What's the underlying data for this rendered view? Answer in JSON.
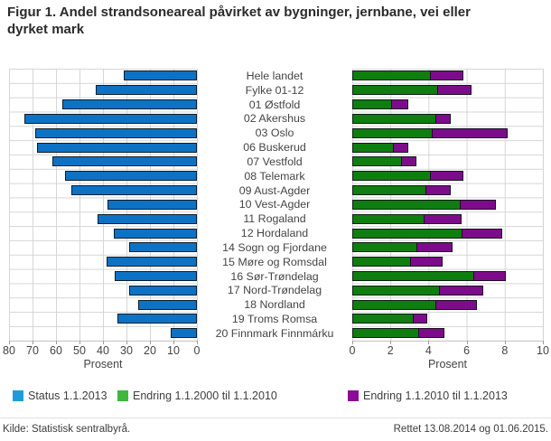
{
  "title": "Figur 1. Andel strandsoneareal påvirket av bygninger, jernbane, vei eller dyrket mark",
  "footer": {
    "source": "Kilde: Statistisk sentralbyrå.",
    "note": "Rettet 13.08.2014 og 01.06.2015."
  },
  "legend": [
    {
      "label": "Status 1.1.2013",
      "color": "#1f9cd8"
    },
    {
      "label": "Endring 1.1.2000 til 1.1.2010",
      "color": "#3db83d"
    },
    {
      "label": "Endring 1.1.2010 til 1.1.2013",
      "color": "#8a0d96"
    }
  ],
  "colors": {
    "status_bar": "#0d72c4",
    "endring_2000_2010_bar": "#0f7d0f",
    "endring_2010_2013_bar": "#7d0c8a",
    "grid": "#d6d6d6"
  },
  "chart_data": {
    "type": "bar",
    "orientation": "horizontal",
    "title": "Figur 1. Andel strandsoneareal påvirket av bygninger, jernbane, vei eller dyrket mark",
    "grid": true,
    "legend_position": "bottom",
    "categories": [
      "Hele landet",
      "Fylke 01-12",
      "01 Østfold",
      "02 Akershus",
      "03 Oslo",
      "06 Buskerud",
      "07 Vestfold",
      "08 Telemark",
      "09 Aust-Agder",
      "10 Vest-Agder",
      "11 Rogaland",
      "12 Hordaland",
      "14 Sogn og Fjordane",
      "15 Møre og Romsdal",
      "16 Sør-Trøndelag",
      "17 Nord-Trøndelag",
      "18 Nordland",
      "19 Troms Romsa",
      "20 Finnmark Finnmárku"
    ],
    "panels": [
      {
        "name": "status",
        "xlabel": "Prosent",
        "xlim": [
          80,
          0
        ],
        "ticks": [
          80,
          70,
          60,
          50,
          40,
          30,
          20,
          10,
          0
        ],
        "stacked": false,
        "series": [
          {
            "name": "Status 1.1.2013",
            "values": [
              31,
              43,
              57.5,
              73.5,
              69,
              68,
              61.5,
              56,
              53.5,
              38,
              42.5,
              35.5,
              29,
              38.5,
              35,
              29,
              25,
              34,
              11
            ]
          }
        ]
      },
      {
        "name": "endring",
        "xlabel": "Prosent",
        "xlim": [
          0,
          10
        ],
        "ticks": [
          0,
          2,
          4,
          6,
          8,
          10
        ],
        "stacked": true,
        "series": [
          {
            "name": "Endring 1.1.2000 til 1.1.2010",
            "values": [
              4.1,
              4.5,
              2.1,
              4.4,
              4.2,
              2.2,
              2.6,
              4.1,
              3.9,
              5.7,
              3.8,
              5.8,
              3.4,
              3.1,
              6.4,
              4.6,
              4.4,
              3.2,
              3.5
            ]
          },
          {
            "name": "Endring 1.1.2010 til 1.1.2013",
            "values": [
              1.8,
              1.8,
              0.9,
              0.8,
              4.0,
              0.8,
              0.8,
              1.8,
              1.3,
              1.9,
              2.0,
              2.1,
              1.9,
              1.7,
              1.7,
              2.3,
              2.2,
              0.8,
              1.4
            ]
          }
        ]
      }
    ]
  }
}
